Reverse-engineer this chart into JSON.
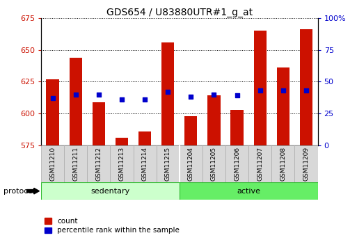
{
  "title": "GDS654 / U83880UTR#1_g_at",
  "samples": [
    "GSM11210",
    "GSM11211",
    "GSM11212",
    "GSM11213",
    "GSM11214",
    "GSM11215",
    "GSM11204",
    "GSM11205",
    "GSM11206",
    "GSM11207",
    "GSM11208",
    "GSM11209"
  ],
  "counts": [
    627,
    644,
    609,
    581,
    586,
    656,
    598,
    614,
    603,
    665,
    636,
    666
  ],
  "percentiles": [
    37,
    40,
    40,
    36,
    36,
    42,
    38,
    40,
    39,
    43,
    43,
    43
  ],
  "group_colors": [
    "#ccffcc",
    "#66ee66"
  ],
  "ylim_left": [
    575,
    675
  ],
  "ylim_right": [
    0,
    100
  ],
  "yticks_left": [
    575,
    600,
    625,
    650,
    675
  ],
  "yticks_right": [
    0,
    25,
    50,
    75,
    100
  ],
  "bar_color": "#cc1100",
  "dot_color": "#0000cc",
  "baseline": 575,
  "legend_items": [
    "count",
    "percentile rank within the sample"
  ],
  "protocol_label": "protocol",
  "left_yaxis_color": "#cc1100",
  "right_yaxis_color": "#0000cc",
  "bar_width": 0.55,
  "sed_count": 6,
  "active_count": 6
}
